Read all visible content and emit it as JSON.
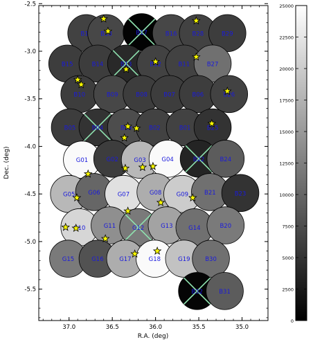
{
  "chart_data": {
    "type": "scatter",
    "subtype": "sky-footprint-map",
    "title": "",
    "xlabel": "R.A. (deg)",
    "ylabel": "Dec. (deg)",
    "xlim": [
      37.35,
      34.7
    ],
    "ylim": [
      -5.83,
      -2.52
    ],
    "x_ticks": [
      37.0,
      36.5,
      36.0,
      35.5,
      35.0
    ],
    "x_tick_labels": [
      "37.0",
      "36.5",
      "36.0",
      "35.5",
      "35.0"
    ],
    "y_ticks": [
      -2.5,
      -3.0,
      -3.5,
      -4.0,
      -4.5,
      -5.0,
      -5.5
    ],
    "y_tick_labels": [
      "-2.5",
      "-3.0",
      "-3.5",
      "-4.0",
      "-4.5",
      "-5.0",
      "-5.5"
    ],
    "field_radius_deg": 0.215,
    "fields": [
      {
        "name": "B19",
        "ra": 36.8,
        "dec": -2.81,
        "value": 6500
      },
      {
        "name": "B18",
        "ra": 36.57,
        "dec": -2.81,
        "value": 7000
      },
      {
        "name": "B17",
        "ra": 36.16,
        "dec": -2.8,
        "value": 300,
        "crossed": true
      },
      {
        "name": "B16",
        "ra": 35.82,
        "dec": -2.81,
        "value": 7000
      },
      {
        "name": "B28",
        "ra": 35.51,
        "dec": -2.81,
        "value": 6500
      },
      {
        "name": "B29",
        "ra": 35.17,
        "dec": -2.81,
        "value": 6000
      },
      {
        "name": "B15",
        "ra": 37.02,
        "dec": -3.13,
        "value": 6000
      },
      {
        "name": "B14",
        "ra": 36.67,
        "dec": -3.13,
        "value": 6000
      },
      {
        "name": "B13",
        "ra": 36.34,
        "dec": -3.13,
        "value": 4000,
        "crossed": true
      },
      {
        "name": "B12",
        "ra": 36.0,
        "dec": -3.13,
        "value": 6500
      },
      {
        "name": "B11",
        "ra": 35.67,
        "dec": -3.13,
        "value": 6500
      },
      {
        "name": "B27",
        "ra": 35.34,
        "dec": -3.13,
        "value": 11000
      },
      {
        "name": "B10",
        "ra": 36.88,
        "dec": -3.45,
        "value": 6000
      },
      {
        "name": "B09",
        "ra": 36.5,
        "dec": -3.45,
        "value": 7000
      },
      {
        "name": "B08",
        "ra": 36.16,
        "dec": -3.45,
        "value": 6000
      },
      {
        "name": "B07",
        "ra": 35.84,
        "dec": -3.45,
        "value": 6000
      },
      {
        "name": "B06",
        "ra": 35.51,
        "dec": -3.45,
        "value": 6000
      },
      {
        "name": "B26",
        "ra": 35.15,
        "dec": -3.45,
        "value": 6500
      },
      {
        "name": "B05",
        "ra": 36.99,
        "dec": -3.8,
        "value": 6000
      },
      {
        "name": "B04",
        "ra": 36.67,
        "dec": -3.8,
        "value": 5000,
        "crossed": true
      },
      {
        "name": "B03",
        "ra": 36.34,
        "dec": -3.8,
        "value": 7500
      },
      {
        "name": "B02",
        "ra": 36.01,
        "dec": -3.8,
        "value": 6500
      },
      {
        "name": "B01",
        "ra": 35.66,
        "dec": -3.8,
        "value": 6500
      },
      {
        "name": "B25",
        "ra": 35.34,
        "dec": -3.8,
        "value": 5000
      },
      {
        "name": "G01",
        "ra": 36.85,
        "dec": -4.14,
        "value": 24500
      },
      {
        "name": "G02",
        "ra": 36.5,
        "dec": -4.13,
        "value": 6000
      },
      {
        "name": "G03",
        "ra": 36.18,
        "dec": -4.14,
        "value": 18000
      },
      {
        "name": "G04",
        "ra": 35.86,
        "dec": -4.13,
        "value": 24500
      },
      {
        "name": "B22",
        "ra": 35.5,
        "dec": -4.13,
        "value": 3500,
        "crossed": true
      },
      {
        "name": "B24",
        "ra": 35.19,
        "dec": -4.13,
        "value": 9000
      },
      {
        "name": "G05",
        "ra": 37.0,
        "dec": -4.5,
        "value": 18000
      },
      {
        "name": "G06",
        "ra": 36.71,
        "dec": -4.48,
        "value": 10000
      },
      {
        "name": "G07",
        "ra": 36.37,
        "dec": -4.5,
        "value": 22000
      },
      {
        "name": "G08",
        "ra": 36.0,
        "dec": -4.48,
        "value": 17000
      },
      {
        "name": "G09",
        "ra": 35.69,
        "dec": -4.5,
        "value": 20000
      },
      {
        "name": "B21",
        "ra": 35.37,
        "dec": -4.48,
        "value": 11000
      },
      {
        "name": "B23",
        "ra": 35.02,
        "dec": -4.49,
        "value": 5000
      },
      {
        "name": "G10",
        "ra": 36.88,
        "dec": -4.85,
        "value": 21000
      },
      {
        "name": "G11",
        "ra": 36.53,
        "dec": -4.83,
        "value": 14000
      },
      {
        "name": "G12",
        "ra": 36.2,
        "dec": -4.85,
        "value": 12000,
        "crossed": true
      },
      {
        "name": "G13",
        "ra": 35.87,
        "dec": -4.83,
        "value": 16000
      },
      {
        "name": "G14",
        "ra": 35.55,
        "dec": -4.85,
        "value": 11000
      },
      {
        "name": "B20",
        "ra": 35.19,
        "dec": -4.83,
        "value": 12000
      },
      {
        "name": "G15",
        "ra": 37.01,
        "dec": -5.18,
        "value": 12000
      },
      {
        "name": "G16",
        "ra": 36.67,
        "dec": -5.18,
        "value": 8000
      },
      {
        "name": "G17",
        "ra": 36.35,
        "dec": -5.18,
        "value": 17000
      },
      {
        "name": "G18",
        "ra": 36.01,
        "dec": -5.18,
        "value": 24500
      },
      {
        "name": "G19",
        "ra": 35.67,
        "dec": -5.18,
        "value": 19000
      },
      {
        "name": "B30",
        "ra": 35.36,
        "dec": -5.18,
        "value": 11000
      },
      {
        "name": "B32",
        "ra": 35.52,
        "dec": -5.52,
        "value": 500,
        "crossed": true
      },
      {
        "name": "B31",
        "ra": 35.2,
        "dec": -5.52,
        "value": 9000
      }
    ],
    "stars": [
      {
        "ra": 36.6,
        "dec": -2.66
      },
      {
        "ra": 36.55,
        "dec": -2.79
      },
      {
        "ra": 35.53,
        "dec": -2.68
      },
      {
        "ra": 36.34,
        "dec": -3.19
      },
      {
        "ra": 36.0,
        "dec": -3.11
      },
      {
        "ra": 35.53,
        "dec": -3.06
      },
      {
        "ra": 36.9,
        "dec": -3.3
      },
      {
        "ra": 36.86,
        "dec": -3.35
      },
      {
        "ra": 35.17,
        "dec": -3.42
      },
      {
        "ra": 36.32,
        "dec": -3.79
      },
      {
        "ra": 36.22,
        "dec": -3.81
      },
      {
        "ra": 36.36,
        "dec": -3.91
      },
      {
        "ra": 35.35,
        "dec": -3.76
      },
      {
        "ra": 36.78,
        "dec": -4.29
      },
      {
        "ra": 36.35,
        "dec": -4.23
      },
      {
        "ra": 36.15,
        "dec": -4.22
      },
      {
        "ra": 36.03,
        "dec": -4.21
      },
      {
        "ra": 36.91,
        "dec": -4.54
      },
      {
        "ra": 35.94,
        "dec": -4.59
      },
      {
        "ra": 35.57,
        "dec": -4.54
      },
      {
        "ra": 36.32,
        "dec": -4.68
      },
      {
        "ra": 37.04,
        "dec": -4.85
      },
      {
        "ra": 36.92,
        "dec": -4.86
      },
      {
        "ra": 36.58,
        "dec": -4.97
      },
      {
        "ra": 36.24,
        "dec": -5.13
      },
      {
        "ra": 35.98,
        "dec": -5.1
      }
    ],
    "colorbar": {
      "min": 0,
      "max": 25000,
      "ticks": [
        0,
        2500,
        5000,
        7500,
        10000,
        12500,
        15000,
        17500,
        20000,
        22500,
        25000
      ],
      "tick_labels": [
        "0",
        "2500",
        "5000",
        "7500",
        "10000",
        "12500",
        "15000",
        "17500",
        "20000",
        "22500",
        "25000"
      ]
    },
    "grid": false,
    "colors": {
      "field_label": "#1a1adc",
      "cross": "#8fe3b0",
      "star_fill": "#ffff00",
      "star_stroke": "#000000"
    }
  }
}
